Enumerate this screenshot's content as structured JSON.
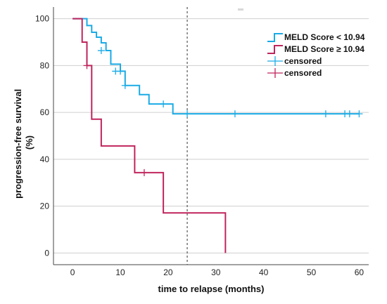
{
  "chart_data": {
    "type": "line",
    "subtype": "kaplan-meier",
    "title": "",
    "xlabel": "time to relapse (months)",
    "ylabel_lines": [
      "progression-free survival",
      "(%)"
    ],
    "xlim": [
      -4,
      62
    ],
    "ylim": [
      -5,
      105
    ],
    "xticks": [
      0,
      10,
      20,
      30,
      40,
      50,
      60
    ],
    "yticks": [
      0,
      20,
      40,
      60,
      80,
      100
    ],
    "grid": "horizontal",
    "reference_line": {
      "x": 24,
      "style": "dashed"
    },
    "legend_placement": "top-right",
    "legend": [
      {
        "label": "MELD Score < 10.94",
        "kind": "step",
        "color": "#1aabe6"
      },
      {
        "label": "MELD Score ≥ 10.94",
        "kind": "step",
        "color": "#c0245c"
      },
      {
        "label": "censored",
        "kind": "censor",
        "color": "#1aabe6"
      },
      {
        "label": "censored",
        "kind": "censor",
        "color": "#c0245c"
      }
    ],
    "series": [
      {
        "name": "MELD Score < 10.94",
        "color": "#1aabe6",
        "steps": [
          [
            0,
            100
          ],
          [
            3,
            97.1
          ],
          [
            4,
            94.2
          ],
          [
            5,
            92.1
          ],
          [
            6,
            89.7
          ],
          [
            7,
            86.4
          ],
          [
            8,
            80.6
          ],
          [
            10,
            77.6
          ],
          [
            11,
            71.5
          ],
          [
            14,
            67.6
          ],
          [
            16,
            63.6
          ],
          [
            21,
            59.4
          ],
          [
            60,
            59.4
          ]
        ],
        "censored": [
          [
            6,
            86.4
          ],
          [
            9,
            77.6
          ],
          [
            10,
            77.6
          ],
          [
            11,
            71.5
          ],
          [
            19,
            63.6
          ],
          [
            24,
            59.4
          ],
          [
            34,
            59.4
          ],
          [
            53,
            59.4
          ],
          [
            57,
            59.4
          ],
          [
            58,
            59.4
          ],
          [
            60,
            59.4
          ]
        ]
      },
      {
        "name": "MELD Score ≥ 10.94",
        "color": "#c0245c",
        "steps": [
          [
            0,
            100
          ],
          [
            2,
            90
          ],
          [
            3,
            80
          ],
          [
            4,
            57.1
          ],
          [
            6,
            45.7
          ],
          [
            13,
            34.3
          ],
          [
            19,
            17.1
          ],
          [
            32,
            17.1
          ],
          [
            32,
            0
          ]
        ],
        "censored": [
          [
            3,
            80
          ],
          [
            15,
            34.3
          ]
        ]
      }
    ]
  }
}
